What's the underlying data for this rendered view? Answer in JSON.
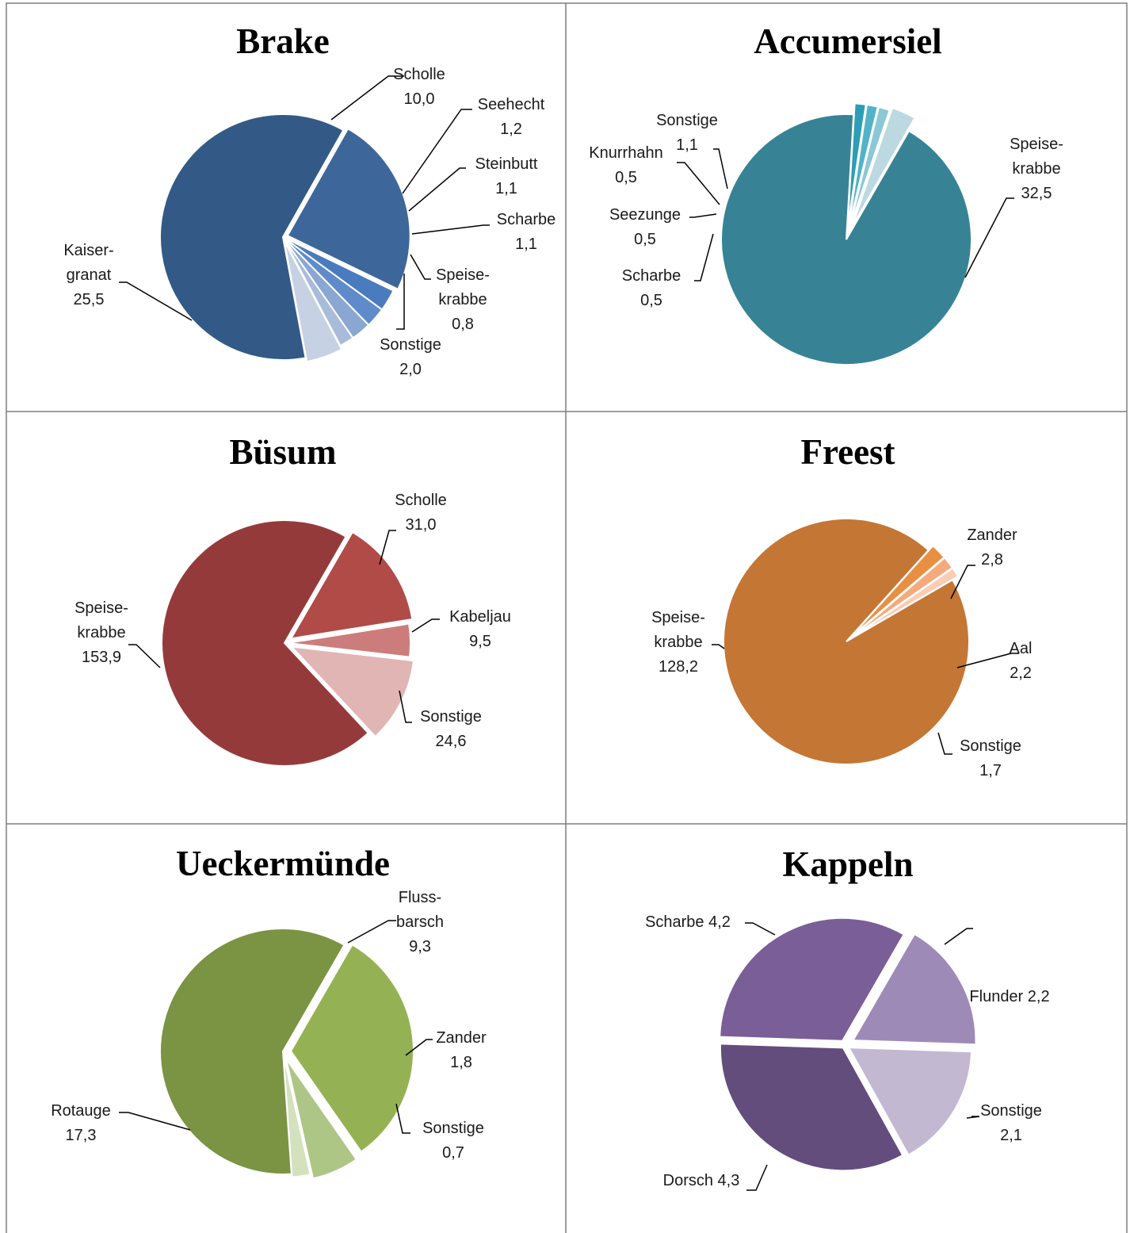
{
  "charts": [
    {
      "title": "Brake",
      "type": "pie",
      "chart_data": {
        "type": "pie",
        "title": "Brake",
        "slices": [
          {
            "label": [
              "Scholle",
              "10,0"
            ],
            "value": 10.0,
            "color": "#3D679A"
          },
          {
            "label": [
              "Seehecht",
              "1,2"
            ],
            "value": 1.2,
            "color": "#4A7BBF"
          },
          {
            "label": [
              "Steinbutt",
              "1,1"
            ],
            "value": 1.1,
            "color": "#5F8BCB"
          },
          {
            "label": [
              "Scharbe",
              "1,1"
            ],
            "value": 1.1,
            "color": "#8AA7D2"
          },
          {
            "label": [
              "Speise-",
              "krabbe",
              "0,8"
            ],
            "value": 0.8,
            "color": "#A8BBDA"
          },
          {
            "label": [
              "Sonstige",
              "2,0"
            ],
            "value": 2.0,
            "color": "#C6D1E4"
          },
          {
            "label": [
              "Kaiser-",
              "granat",
              "25,5"
            ],
            "value": 25.5,
            "color": "#335A86"
          }
        ]
      }
    },
    {
      "title": "Accumersiel",
      "type": "pie",
      "chart_data": {
        "type": "pie",
        "title": "Accumersiel",
        "slices": [
          {
            "label": [
              "Speise-",
              "krabbe",
              "32,5"
            ],
            "value": 32.5,
            "color": "#378395"
          },
          {
            "label": [
              "Scharbe",
              "0,5"
            ],
            "value": 0.5,
            "color": "#2D9DB5"
          },
          {
            "label": [
              "Seezunge",
              "0,5"
            ],
            "value": 0.5,
            "color": "#52B3C8"
          },
          {
            "label": [
              "Knurrhahn",
              "0,5"
            ],
            "value": 0.5,
            "color": "#8BC7D5"
          },
          {
            "label": [
              "Sonstige",
              "1,1"
            ],
            "value": 1.1,
            "color": "#BCD9E2"
          }
        ]
      }
    },
    {
      "title": "Büsum",
      "type": "pie",
      "chart_data": {
        "type": "pie",
        "title": "Büsum",
        "slices": [
          {
            "label": [
              "Scholle",
              "31,0"
            ],
            "value": 31.0,
            "color": "#B04B48"
          },
          {
            "label": [
              "Kabeljau",
              "9,5"
            ],
            "value": 9.5,
            "color": "#CC7D7B"
          },
          {
            "label": [
              "Sonstige",
              "24,6"
            ],
            "value": 24.6,
            "color": "#E0B5B4"
          },
          {
            "label": [
              "Speise-",
              "krabbe",
              "153,9"
            ],
            "value": 153.9,
            "color": "#953A3A"
          }
        ]
      }
    },
    {
      "title": "Freest",
      "type": "pie",
      "chart_data": {
        "type": "pie",
        "title": "Freest",
        "slices": [
          {
            "label": [
              "Zander",
              "2,8"
            ],
            "value": 2.8,
            "color": "#E88F41"
          },
          {
            "label": [
              "Aal",
              "2,2"
            ],
            "value": 2.2,
            "color": "#F5AA7C"
          },
          {
            "label": [
              "Sonstige",
              "1,7"
            ],
            "value": 1.7,
            "color": "#F8CDB4"
          },
          {
            "label": [
              "Speise-",
              "krabbe",
              "128,2"
            ],
            "value": 128.2,
            "color": "#C47635"
          }
        ]
      }
    },
    {
      "title": "Ueckermünde",
      "type": "pie",
      "chart_data": {
        "type": "pie",
        "title": "Ueckermünde",
        "slices": [
          {
            "label": [
              "Fluss-",
              "barsch",
              "9,3"
            ],
            "value": 9.3,
            "color": "#94B254"
          },
          {
            "label": [
              "Zander",
              "1,8"
            ],
            "value": 1.8,
            "color": "#ADC686"
          },
          {
            "label": [
              "Sonstige",
              "0,7"
            ],
            "value": 0.7,
            "color": "#D3E1BD"
          },
          {
            "label": [
              "Rotauge",
              "17,3"
            ],
            "value": 17.3,
            "color": "#7A9443"
          }
        ]
      }
    },
    {
      "title": "Kappeln",
      "type": "pie",
      "chart_data": {
        "type": "pie",
        "title": "Kappeln",
        "slices": [
          {
            "label": [
              "Flunder 2,2"
            ],
            "value": 2.2,
            "color": "#9E8AB7"
          },
          {
            "label": [
              "Sonstige",
              "2,1"
            ],
            "value": 2.1,
            "color": "#C3B8D2"
          },
          {
            "label": [
              "Dorsch 4,3"
            ],
            "value": 4.3,
            "color": "#634D7D"
          },
          {
            "label": [
              "Scharbe 4,2"
            ],
            "value": 4.2,
            "color": "#7A5E97"
          }
        ]
      }
    }
  ]
}
